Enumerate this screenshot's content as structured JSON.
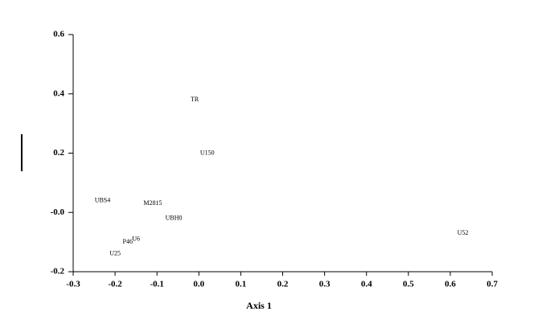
{
  "chart_data": {
    "type": "scatter",
    "x_label": "Axis 1",
    "xlim": [
      -0.3,
      0.7
    ],
    "xticks": [
      -0.3,
      -0.2,
      -0.1,
      {
        "value": 0,
        "label": "0.0"
      },
      0.1,
      0.2,
      0.3,
      0.4,
      0.5,
      0.6,
      0.7
    ],
    "ylim": [
      -0.2,
      0.6
    ],
    "yticks": [
      -0.2,
      {
        "value": 0,
        "label": "-0.0"
      },
      0.2,
      0.4,
      0.6
    ],
    "points": [
      {
        "label": "TR",
        "x": -0.01,
        "y": 0.38
      },
      {
        "label": "U150",
        "x": 0.02,
        "y": 0.2
      },
      {
        "label": "UBS4",
        "x": -0.23,
        "y": 0.04
      },
      {
        "label": "M2815",
        "x": -0.11,
        "y": 0.03
      },
      {
        "label": "UBH0",
        "x": -0.06,
        "y": -0.02
      },
      {
        "label": "U6",
        "x": -0.15,
        "y": -0.09
      },
      {
        "label": "P46",
        "x": -0.17,
        "y": -0.1
      },
      {
        "label": "U25",
        "x": -0.2,
        "y": -0.14
      },
      {
        "label": "U52",
        "x": 0.63,
        "y": -0.07
      }
    ]
  }
}
